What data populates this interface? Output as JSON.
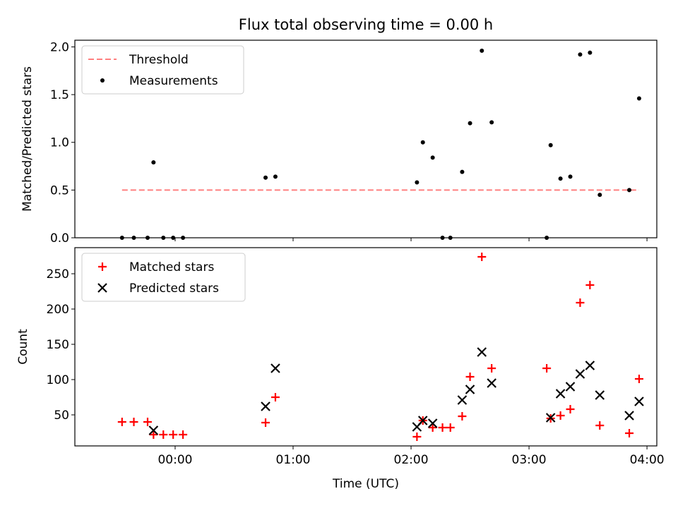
{
  "chart_data": {
    "type": "scatter",
    "title": "Flux total observing time = 0.00 h",
    "xlabel": "Time (UTC)",
    "x_is_time": true,
    "xlim": [
      "23:09",
      "04:05"
    ],
    "x_ticks": [
      "00:00",
      "01:00",
      "02:00",
      "03:00",
      "04:00"
    ],
    "colors": {
      "threshold": "#ff7f7f",
      "measurements": "#000000",
      "matched": "#ff0000",
      "predicted": "#000000"
    },
    "subplots": [
      {
        "ylabel": "Matched/Predicted stars",
        "ylim": [
          0.0,
          2.07
        ],
        "y_ticks": [
          "0.0",
          "0.5",
          "1.0",
          "1.5",
          "2.0"
        ],
        "legend_position": "upper left",
        "series": [
          {
            "name": "Threshold",
            "kind": "dashed-line",
            "points": [
              [
                "23:33",
                0.5
              ],
              [
                "03:56",
                0.5
              ]
            ]
          },
          {
            "name": "Measurements",
            "kind": "dots",
            "points": [
              [
                "23:33",
                0.0
              ],
              [
                "23:39",
                0.0
              ],
              [
                "23:46",
                0.0
              ],
              [
                "23:49",
                0.79
              ],
              [
                "23:54",
                0.0
              ],
              [
                "23:59",
                0.0
              ],
              [
                "00:04",
                0.0
              ],
              [
                "00:46",
                0.63
              ],
              [
                "00:51",
                0.64
              ],
              [
                "02:03",
                0.58
              ],
              [
                "02:06",
                1.0
              ],
              [
                "02:11",
                0.84
              ],
              [
                "02:16",
                0.0
              ],
              [
                "02:20",
                0.0
              ],
              [
                "02:26",
                0.69
              ],
              [
                "02:30",
                1.2
              ],
              [
                "02:36",
                1.96
              ],
              [
                "02:41",
                1.21
              ],
              [
                "03:09",
                0.0
              ],
              [
                "03:11",
                0.97
              ],
              [
                "03:16",
                0.62
              ],
              [
                "03:21",
                0.64
              ],
              [
                "03:26",
                1.92
              ],
              [
                "03:31",
                1.94
              ],
              [
                "03:36",
                0.45
              ],
              [
                "03:51",
                0.5
              ],
              [
                "03:56",
                1.46
              ]
            ]
          }
        ]
      },
      {
        "ylabel": "Count",
        "ylim": [
          6,
          287
        ],
        "y_ticks": [
          "50",
          "100",
          "150",
          "200",
          "250"
        ],
        "legend_position": "upper left",
        "series": [
          {
            "name": "Matched stars",
            "kind": "plus",
            "points": [
              [
                "23:33",
                40
              ],
              [
                "23:39",
                40
              ],
              [
                "23:46",
                40
              ],
              [
                "23:49",
                22
              ],
              [
                "23:54",
                22
              ],
              [
                "23:59",
                22
              ],
              [
                "00:04",
                22
              ],
              [
                "00:46",
                39
              ],
              [
                "00:51",
                75
              ],
              [
                "02:03",
                19
              ],
              [
                "02:06",
                42
              ],
              [
                "02:11",
                32
              ],
              [
                "02:16",
                32
              ],
              [
                "02:20",
                32
              ],
              [
                "02:26",
                48
              ],
              [
                "02:30",
                104
              ],
              [
                "02:36",
                274
              ],
              [
                "02:41",
                116
              ],
              [
                "03:09",
                116
              ],
              [
                "03:11",
                45
              ],
              [
                "03:16",
                49
              ],
              [
                "03:21",
                58
              ],
              [
                "03:26",
                209
              ],
              [
                "03:31",
                234
              ],
              [
                "03:36",
                35
              ],
              [
                "03:51",
                24
              ],
              [
                "03:56",
                101
              ]
            ]
          },
          {
            "name": "Predicted stars",
            "kind": "x",
            "points": [
              [
                "23:49",
                28
              ],
              [
                "00:46",
                62
              ],
              [
                "00:51",
                116
              ],
              [
                "02:03",
                33
              ],
              [
                "02:06",
                42
              ],
              [
                "02:11",
                38
              ],
              [
                "02:26",
                71
              ],
              [
                "02:30",
                86
              ],
              [
                "02:36",
                139
              ],
              [
                "02:41",
                95
              ],
              [
                "03:11",
                46
              ],
              [
                "03:16",
                80
              ],
              [
                "03:21",
                90
              ],
              [
                "03:26",
                108
              ],
              [
                "03:31",
                120
              ],
              [
                "03:36",
                78
              ],
              [
                "03:51",
                49
              ],
              [
                "03:56",
                69
              ]
            ]
          }
        ]
      }
    ]
  }
}
